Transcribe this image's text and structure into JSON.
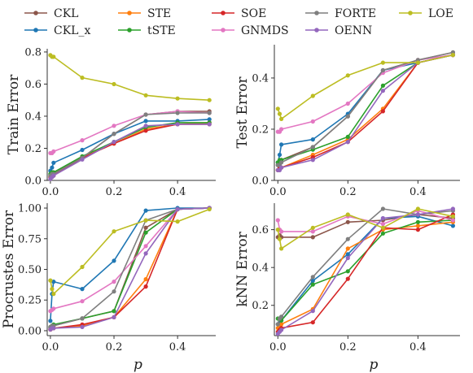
{
  "legend": [
    {
      "name": "CKL",
      "color": "#8c564b"
    },
    {
      "name": "CKL_x",
      "color": "#1f77b4"
    },
    {
      "name": "STE",
      "color": "#ff7f0e"
    },
    {
      "name": "tSTE",
      "color": "#2ca02c"
    },
    {
      "name": "SOE",
      "color": "#d62728"
    },
    {
      "name": "GNMDS",
      "color": "#e377c2"
    },
    {
      "name": "FORTE",
      "color": "#7f7f7f"
    },
    {
      "name": "OENN",
      "color": "#9467bd"
    },
    {
      "name": "LOE",
      "color": "#bcbd22"
    }
  ],
  "chart_data": [
    {
      "type": "line",
      "ylabel": "Train Error",
      "xlabel": "",
      "xlim": [
        -0.01,
        0.52
      ],
      "ylim": [
        0,
        0.82
      ],
      "xticks": [
        "0.0",
        "0.2",
        "0.4"
      ],
      "xtick_values": [
        0,
        0.2,
        0.4
      ],
      "yticks": [
        "0.0",
        "0.2",
        "0.4",
        "0.6",
        "0.8"
      ],
      "ytick_values": [
        0,
        0.2,
        0.4,
        0.6,
        0.8
      ],
      "x": [
        0,
        0.005,
        0.01,
        0.1,
        0.2,
        0.3,
        0.4,
        0.5
      ],
      "series": [
        {
          "name": "CKL",
          "values": [
            0.03,
            0.04,
            0.05,
            0.14,
            0.29,
            0.41,
            0.43,
            0.43
          ]
        },
        {
          "name": "CKL_x",
          "values": [
            0.06,
            0.08,
            0.11,
            0.19,
            0.29,
            0.37,
            0.37,
            0.38
          ]
        },
        {
          "name": "STE",
          "values": [
            0.02,
            0.03,
            0.04,
            0.14,
            0.23,
            0.32,
            0.35,
            0.36
          ]
        },
        {
          "name": "tSTE",
          "values": [
            0.04,
            0.05,
            0.05,
            0.15,
            0.24,
            0.33,
            0.36,
            0.36
          ]
        },
        {
          "name": "SOE",
          "values": [
            0.02,
            0.03,
            0.03,
            0.14,
            0.23,
            0.31,
            0.35,
            0.35
          ]
        },
        {
          "name": "GNMDS",
          "values": [
            0.17,
            0.17,
            0.18,
            0.25,
            0.34,
            0.41,
            0.43,
            0.42
          ]
        },
        {
          "name": "FORTE",
          "values": [
            0.03,
            0.04,
            0.04,
            0.14,
            0.29,
            0.41,
            0.42,
            0.42
          ]
        },
        {
          "name": "OENN",
          "values": [
            0.01,
            0.02,
            0.03,
            0.13,
            0.24,
            0.34,
            0.35,
            0.35
          ]
        },
        {
          "name": "LOE",
          "values": [
            0.78,
            0.77,
            0.77,
            0.64,
            0.6,
            0.53,
            0.51,
            0.5
          ]
        }
      ]
    },
    {
      "type": "line",
      "ylabel": "Test Error",
      "xlabel": "",
      "xlim": [
        -0.01,
        0.52
      ],
      "ylim": [
        0,
        0.53
      ],
      "xticks": [
        "0.0",
        "0.2",
        "0.4"
      ],
      "xtick_values": [
        0,
        0.2,
        0.4
      ],
      "yticks": [
        "0.0",
        "0.2",
        "0.4"
      ],
      "ytick_values": [
        0,
        0.2,
        0.4
      ],
      "x": [
        0,
        0.005,
        0.01,
        0.1,
        0.2,
        0.3,
        0.4,
        0.5
      ],
      "series": [
        {
          "name": "CKL",
          "values": [
            0.06,
            0.07,
            0.08,
            0.13,
            0.25,
            0.43,
            0.47,
            0.5
          ]
        },
        {
          "name": "CKL_x",
          "values": [
            0.07,
            0.1,
            0.14,
            0.16,
            0.26,
            0.43,
            0.46,
            0.49
          ]
        },
        {
          "name": "STE",
          "values": [
            0.04,
            0.05,
            0.05,
            0.1,
            0.16,
            0.28,
            0.46,
            0.49
          ]
        },
        {
          "name": "tSTE",
          "values": [
            0.07,
            0.08,
            0.08,
            0.12,
            0.17,
            0.37,
            0.46,
            0.49
          ]
        },
        {
          "name": "SOE",
          "values": [
            0.04,
            0.05,
            0.05,
            0.09,
            0.15,
            0.27,
            0.46,
            0.49
          ]
        },
        {
          "name": "GNMDS",
          "values": [
            0.19,
            0.19,
            0.2,
            0.23,
            0.3,
            0.42,
            0.47,
            0.49
          ]
        },
        {
          "name": "FORTE",
          "values": [
            0.06,
            0.06,
            0.07,
            0.13,
            0.25,
            0.43,
            0.47,
            0.5
          ]
        },
        {
          "name": "OENN",
          "values": [
            0.04,
            0.04,
            0.05,
            0.08,
            0.15,
            0.35,
            0.46,
            0.49
          ]
        },
        {
          "name": "LOE",
          "values": [
            0.28,
            0.26,
            0.24,
            0.33,
            0.41,
            0.46,
            0.46,
            0.49
          ]
        }
      ]
    },
    {
      "type": "line",
      "ylabel": "Procrustes Error",
      "xlabel": "p",
      "xlim": [
        -0.01,
        0.52
      ],
      "ylim": [
        -0.04,
        1.04
      ],
      "xticks": [
        "0.0",
        "0.2",
        "0.4"
      ],
      "xtick_values": [
        0,
        0.2,
        0.4
      ],
      "yticks": [
        "0.00",
        "0.25",
        "0.50",
        "0.75",
        "1.00"
      ],
      "ytick_values": [
        0,
        0.25,
        0.5,
        0.75,
        1
      ],
      "x": [
        0,
        0.005,
        0.01,
        0.1,
        0.2,
        0.3,
        0.4,
        0.5
      ],
      "series": [
        {
          "name": "CKL",
          "values": [
            0.02,
            0.03,
            0.04,
            0.1,
            0.16,
            0.84,
            0.99,
            1.0
          ]
        },
        {
          "name": "CKL_x",
          "values": [
            0.08,
            0.3,
            0.4,
            0.34,
            0.57,
            0.98,
            1.0,
            1.0
          ]
        },
        {
          "name": "STE",
          "values": [
            0.01,
            0.02,
            0.02,
            0.04,
            0.11,
            0.42,
            0.99,
            1.0
          ]
        },
        {
          "name": "tSTE",
          "values": [
            0.03,
            0.04,
            0.05,
            0.1,
            0.16,
            0.8,
            0.99,
            1.0
          ]
        },
        {
          "name": "SOE",
          "values": [
            0.01,
            0.02,
            0.02,
            0.05,
            0.11,
            0.36,
            0.99,
            1.0
          ]
        },
        {
          "name": "GNMDS",
          "values": [
            0.16,
            0.17,
            0.18,
            0.24,
            0.4,
            0.69,
            0.99,
            1.0
          ]
        },
        {
          "name": "FORTE",
          "values": [
            0.03,
            0.04,
            0.04,
            0.1,
            0.32,
            0.9,
            0.99,
            1.0
          ]
        },
        {
          "name": "OENN",
          "values": [
            0.01,
            0.02,
            0.02,
            0.03,
            0.11,
            0.63,
            0.99,
            1.0
          ]
        },
        {
          "name": "LOE",
          "values": [
            0.41,
            0.34,
            0.3,
            0.52,
            0.81,
            0.9,
            0.89,
            0.99
          ]
        }
      ]
    },
    {
      "type": "line",
      "ylabel": "kNN Error",
      "xlabel": "p",
      "xlim": [
        -0.01,
        0.52
      ],
      "ylim": [
        0.04,
        0.74
      ],
      "xticks": [
        "0.0",
        "0.2",
        "0.4"
      ],
      "xtick_values": [
        0,
        0.2,
        0.4
      ],
      "yticks": [
        "0.2",
        "0.4",
        "0.6"
      ],
      "ytick_values": [
        0.2,
        0.4,
        0.6
      ],
      "x": [
        0,
        0.005,
        0.01,
        0.1,
        0.2,
        0.3,
        0.4,
        0.5
      ],
      "series": [
        {
          "name": "CKL",
          "values": [
            0.56,
            0.57,
            0.56,
            0.56,
            0.64,
            0.65,
            0.68,
            0.66
          ]
        },
        {
          "name": "CKL_x",
          "values": [
            0.1,
            0.11,
            0.12,
            0.33,
            0.47,
            0.66,
            0.67,
            0.62
          ]
        },
        {
          "name": "STE",
          "values": [
            0.08,
            0.09,
            0.1,
            0.18,
            0.5,
            0.6,
            0.62,
            0.64
          ]
        },
        {
          "name": "tSTE",
          "values": [
            0.13,
            0.13,
            0.12,
            0.31,
            0.38,
            0.58,
            0.64,
            0.65
          ]
        },
        {
          "name": "SOE",
          "values": [
            0.06,
            0.07,
            0.08,
            0.11,
            0.34,
            0.61,
            0.6,
            0.68
          ]
        },
        {
          "name": "GNMDS",
          "values": [
            0.65,
            0.6,
            0.59,
            0.59,
            0.67,
            0.63,
            0.7,
            0.65
          ]
        },
        {
          "name": "FORTE",
          "values": [
            0.1,
            0.13,
            0.14,
            0.35,
            0.55,
            0.71,
            0.68,
            0.7
          ]
        },
        {
          "name": "OENN",
          "values": [
            0.05,
            0.06,
            0.07,
            0.17,
            0.45,
            0.66,
            0.68,
            0.71
          ]
        },
        {
          "name": "LOE",
          "values": [
            0.6,
            0.55,
            0.5,
            0.61,
            0.68,
            0.61,
            0.71,
            0.67
          ]
        }
      ]
    }
  ]
}
